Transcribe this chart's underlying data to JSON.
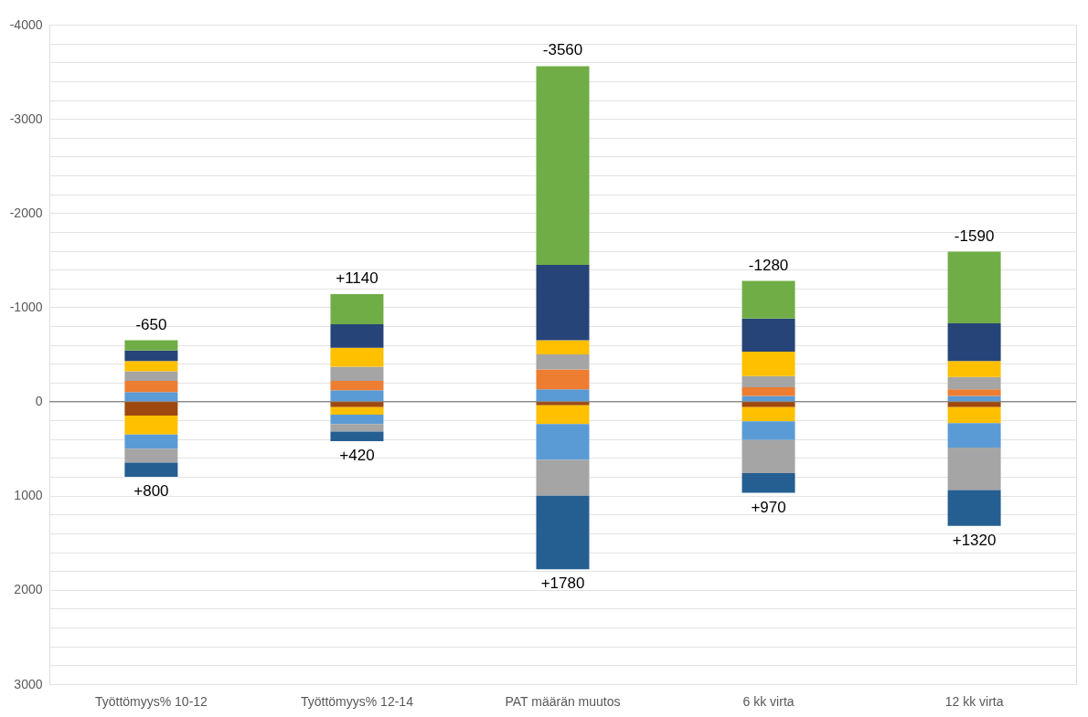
{
  "chart_data": {
    "type": "bar",
    "stacked": true,
    "categories": [
      "Työttömyys% 10-12",
      "Työttömyys% 12-14",
      "PAT määrän muutos",
      "6 kk virta",
      "12 kk virta"
    ],
    "series": [
      {
        "color": "#5b9bd5",
        "values": [
          -100,
          -120,
          -130,
          -60,
          -60
        ]
      },
      {
        "color": "#ed7d31",
        "values": [
          -120,
          -100,
          -210,
          -90,
          -70
        ]
      },
      {
        "color": "#a5a5a5",
        "values": [
          -100,
          -150,
          -160,
          -120,
          -130
        ]
      },
      {
        "color": "#ffc000",
        "values": [
          -110,
          -200,
          -150,
          -260,
          -170
        ]
      },
      {
        "color": "#264478",
        "values": [
          -110,
          -250,
          -800,
          -350,
          -400
        ]
      },
      {
        "color": "#70ad47",
        "values": [
          -110,
          -320,
          -2110,
          -400,
          -760
        ]
      },
      {
        "color": "#9e480e",
        "values": [
          150,
          60,
          40,
          60,
          60
        ]
      },
      {
        "color": "#ffc000",
        "values": [
          200,
          80,
          200,
          150,
          170
        ]
      },
      {
        "color": "#5b9bd5",
        "values": [
          150,
          100,
          380,
          200,
          260
        ]
      },
      {
        "color": "#a5a5a5",
        "values": [
          150,
          80,
          380,
          350,
          450
        ]
      },
      {
        "color": "#255e91",
        "values": [
          150,
          100,
          780,
          210,
          380
        ]
      }
    ],
    "ylim": [
      3000,
      -4000
    ],
    "yticks": [
      -4000,
      {
        "value": -3800,
        "label": null
      },
      {
        "value": -3600,
        "label": null
      },
      {
        "value": -3400,
        "label": null
      },
      {
        "value": -3200,
        "label": null
      },
      -3000,
      {
        "value": -2800,
        "label": null
      },
      {
        "value": -2600,
        "label": null
      },
      {
        "value": -2400,
        "label": null
      },
      {
        "value": -2200,
        "label": null
      },
      -2000,
      {
        "value": -1800,
        "label": null
      },
      {
        "value": -1600,
        "label": null
      },
      {
        "value": -1400,
        "label": null
      },
      {
        "value": -1200,
        "label": null
      },
      -1000,
      {
        "value": -800,
        "label": null
      },
      {
        "value": -600,
        "label": null
      },
      {
        "value": -400,
        "label": null
      },
      {
        "value": -200,
        "label": null
      },
      0,
      {
        "value": 200,
        "label": null
      },
      {
        "value": 400,
        "label": null
      },
      {
        "value": 600,
        "label": null
      },
      {
        "value": 800,
        "label": null
      },
      1000,
      {
        "value": 1200,
        "label": null
      },
      {
        "value": 1400,
        "label": null
      },
      {
        "value": 1600,
        "label": null
      },
      {
        "value": 1800,
        "label": null
      },
      2000,
      {
        "value": 2200,
        "label": null
      },
      {
        "value": 2400,
        "label": null
      },
      {
        "value": 2600,
        "label": null
      },
      {
        "value": 2800,
        "label": null
      },
      3000
    ],
    "grid": true,
    "ref_lines": [
      {
        "axis": "y",
        "value": 0,
        "color": "#898989"
      }
    ],
    "annotations": [
      {
        "text": "-650",
        "x": "Työttömyys% 10-12",
        "y": -650
      },
      {
        "text": "+800",
        "x": "Työttömyys% 10-12",
        "y": 800
      },
      {
        "text": "+1140",
        "x": "Työttömyys% 12-14",
        "y": -1140
      },
      {
        "text": "+420",
        "x": "Työttömyys% 12-14",
        "y": 420
      },
      {
        "text": "-3560",
        "x": "PAT määrän muutos",
        "y": -3560
      },
      {
        "text": "+1780",
        "x": "PAT määrän muutos",
        "y": 1780
      },
      {
        "text": "-1280",
        "x": "6 kk virta",
        "y": -1280
      },
      {
        "text": "+970",
        "x": "6 kk virta",
        "y": 970
      },
      {
        "text": "-1590",
        "x": "12 kk virta",
        "y": -1590
      },
      {
        "text": "+1320",
        "x": "12 kk virta",
        "y": 1320
      }
    ]
  }
}
